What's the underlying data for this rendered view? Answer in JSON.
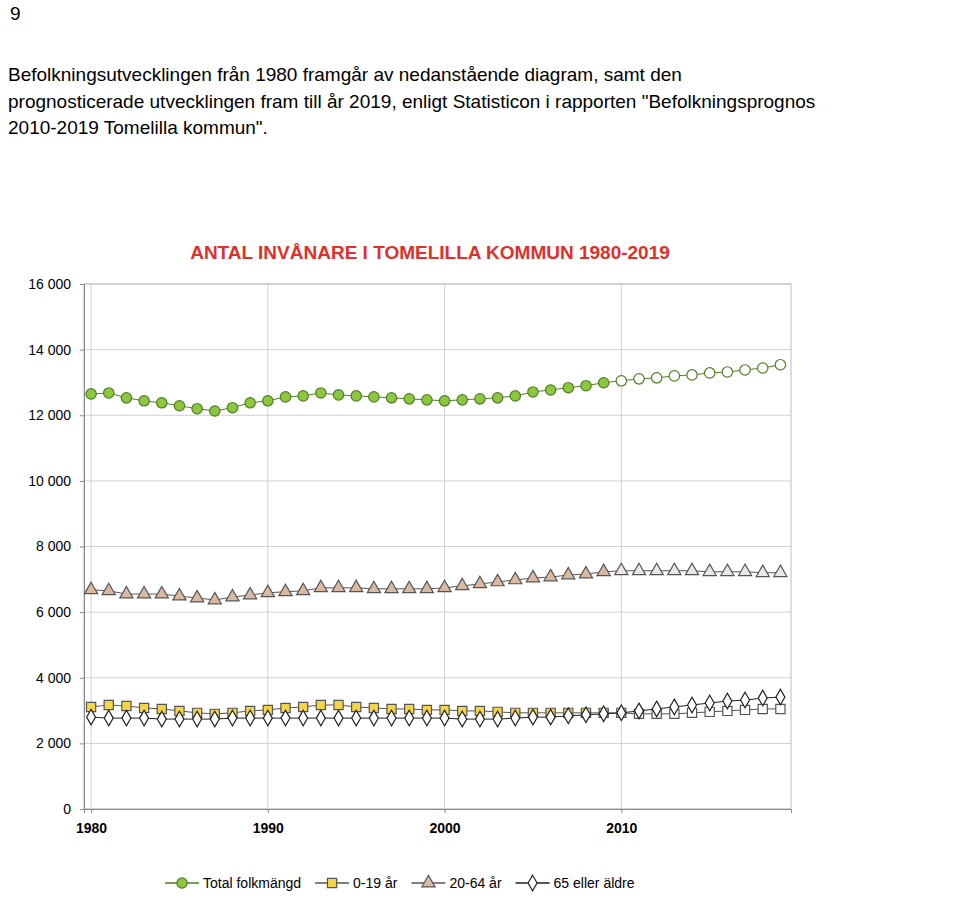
{
  "page": {
    "page_number": "9",
    "paragraph": [
      "Befolkningsutvecklingen från 1980 framgår av nedanstående diagram, samt den",
      "prognosticerade utvecklingen fram till år 2019, enligt Statisticon i rapporten \"Befolkningsprognos",
      "2010-2019 Tomelilla kommun\"."
    ]
  },
  "chart_data": {
    "type": "line",
    "title": "ANTAL INVÅNARE I TOMELILLA KOMMUN 1980-2019",
    "x": [
      1980,
      1981,
      1982,
      1983,
      1984,
      1985,
      1986,
      1987,
      1988,
      1989,
      1990,
      1991,
      1992,
      1993,
      1994,
      1995,
      1996,
      1997,
      1998,
      1999,
      2000,
      2001,
      2002,
      2003,
      2004,
      2005,
      2006,
      2007,
      2008,
      2009,
      2010,
      2011,
      2012,
      2013,
      2014,
      2015,
      2016,
      2017,
      2018,
      2019
    ],
    "xlim": [
      1979.6,
      2019.6
    ],
    "xticks": [
      1980,
      1990,
      2000,
      2010
    ],
    "ylim": [
      0,
      16000
    ],
    "yticks": [
      0,
      {
        "value": 2000,
        "label": "2 000"
      },
      {
        "value": 4000,
        "label": "4 000"
      },
      {
        "value": 6000,
        "label": "6 000"
      },
      {
        "value": 8000,
        "label": "8 000"
      },
      {
        "value": 10000,
        "label": "10 000"
      },
      {
        "value": 12000,
        "label": "12 000"
      },
      {
        "value": 14000,
        "label": "14 000"
      },
      {
        "value": 16000,
        "label": "16 000"
      }
    ],
    "grid": true,
    "legend": "bottom",
    "series": [
      {
        "name": "Total folkmängd",
        "color": "#4f7f24",
        "marker": "circle",
        "colors": [
          "#8dc63f",
          "#8dc63f",
          "#8dc63f",
          "#8dc63f",
          "#8dc63f",
          "#8dc63f",
          "#8dc63f",
          "#8dc63f",
          "#8dc63f",
          "#8dc63f",
          "#8dc63f",
          "#8dc63f",
          "#8dc63f",
          "#8dc63f",
          "#8dc63f",
          "#8dc63f",
          "#8dc63f",
          "#8dc63f",
          "#8dc63f",
          "#8dc63f",
          "#8dc63f",
          "#8dc63f",
          "#8dc63f",
          "#8dc63f",
          "#8dc63f",
          "#8dc63f",
          "#8dc63f",
          "#8dc63f",
          "#8dc63f",
          "#8dc63f",
          "#ffffff",
          "#ffffff",
          "#ffffff",
          "#ffffff",
          "#ffffff",
          "#ffffff",
          "#ffffff",
          "#ffffff",
          "#ffffff",
          "#ffffff"
        ],
        "values": [
          12650,
          12680,
          12530,
          12440,
          12380,
          12290,
          12200,
          12130,
          12230,
          12380,
          12440,
          12560,
          12590,
          12680,
          12620,
          12590,
          12560,
          12530,
          12500,
          12470,
          12440,
          12470,
          12500,
          12530,
          12590,
          12710,
          12770,
          12840,
          12900,
          12990,
          13050,
          13110,
          13140,
          13200,
          13230,
          13290,
          13320,
          13380,
          13440,
          13540
        ]
      },
      {
        "name": "0-19 år",
        "color": "#555555",
        "marker": "square",
        "colors": [
          "#f5d547",
          "#f5d547",
          "#f5d547",
          "#f5d547",
          "#f5d547",
          "#f5d547",
          "#f5d547",
          "#f5d547",
          "#f5d547",
          "#f5d547",
          "#f5d547",
          "#f5d547",
          "#f5d547",
          "#f5d547",
          "#f5d547",
          "#f5d547",
          "#f5d547",
          "#f5d547",
          "#f5d547",
          "#f5d547",
          "#f5d547",
          "#f5d547",
          "#f5d547",
          "#f5d547",
          "#f5d547",
          "#f5d547",
          "#f5d547",
          "#f5d547",
          "#f5d547",
          "#f5d547",
          "#ffffff",
          "#ffffff",
          "#ffffff",
          "#ffffff",
          "#ffffff",
          "#ffffff",
          "#ffffff",
          "#ffffff",
          "#ffffff",
          "#ffffff"
        ],
        "values": [
          3110,
          3170,
          3140,
          3080,
          3050,
          2990,
          2930,
          2900,
          2930,
          2990,
          3020,
          3080,
          3110,
          3170,
          3170,
          3110,
          3080,
          3050,
          3050,
          3020,
          3020,
          2990,
          2990,
          2960,
          2930,
          2930,
          2930,
          2930,
          2930,
          2930,
          2930,
          2900,
          2900,
          2900,
          2930,
          2960,
          2990,
          3020,
          3050,
          3050
        ]
      },
      {
        "name": "20-64 år",
        "color": "#555555",
        "marker": "triangle",
        "colors": [
          "#d9b9a2",
          "#d9b9a2",
          "#d9b9a2",
          "#d9b9a2",
          "#d9b9a2",
          "#d9b9a2",
          "#d9b9a2",
          "#d9b9a2",
          "#d9b9a2",
          "#d9b9a2",
          "#d9b9a2",
          "#d9b9a2",
          "#d9b9a2",
          "#d9b9a2",
          "#d9b9a2",
          "#d9b9a2",
          "#d9b9a2",
          "#d9b9a2",
          "#d9b9a2",
          "#d9b9a2",
          "#d9b9a2",
          "#d9b9a2",
          "#d9b9a2",
          "#d9b9a2",
          "#d9b9a2",
          "#d9b9a2",
          "#d9b9a2",
          "#d9b9a2",
          "#d9b9a2",
          "#d9b9a2",
          "#e8e8e8",
          "#e8e8e8",
          "#e8e8e8",
          "#e8e8e8",
          "#e8e8e8",
          "#e8e8e8",
          "#e8e8e8",
          "#e8e8e8",
          "#e8e8e8",
          "#e8e8e8"
        ],
        "values": [
          6680,
          6650,
          6550,
          6550,
          6550,
          6490,
          6430,
          6370,
          6460,
          6520,
          6590,
          6620,
          6650,
          6740,
          6740,
          6740,
          6710,
          6710,
          6710,
          6710,
          6740,
          6800,
          6860,
          6920,
          6980,
          7040,
          7070,
          7130,
          7160,
          7230,
          7260,
          7260,
          7260,
          7260,
          7260,
          7230,
          7230,
          7230,
          7200,
          7200
        ]
      },
      {
        "name": "65 eller äldre",
        "color": "#222222",
        "marker": "diamond",
        "colors": [
          "#ffffff",
          "#ffffff",
          "#ffffff",
          "#ffffff",
          "#ffffff",
          "#ffffff",
          "#ffffff",
          "#ffffff",
          "#ffffff",
          "#ffffff",
          "#ffffff",
          "#ffffff",
          "#ffffff",
          "#ffffff",
          "#ffffff",
          "#ffffff",
          "#ffffff",
          "#ffffff",
          "#ffffff",
          "#ffffff",
          "#ffffff",
          "#ffffff",
          "#ffffff",
          "#ffffff",
          "#ffffff",
          "#ffffff",
          "#ffffff",
          "#ffffff",
          "#ffffff",
          "#ffffff",
          "#ffffff",
          "#ffffff",
          "#ffffff",
          "#ffffff",
          "#ffffff",
          "#ffffff",
          "#ffffff",
          "#ffffff",
          "#ffffff",
          "#ffffff"
        ],
        "values": [
          2800,
          2770,
          2770,
          2770,
          2740,
          2740,
          2740,
          2740,
          2770,
          2770,
          2770,
          2770,
          2770,
          2770,
          2770,
          2770,
          2770,
          2770,
          2770,
          2770,
          2770,
          2740,
          2740,
          2740,
          2770,
          2800,
          2800,
          2840,
          2870,
          2900,
          2930,
          2990,
          3050,
          3110,
          3170,
          3230,
          3290,
          3320,
          3380,
          3410
        ]
      }
    ]
  }
}
